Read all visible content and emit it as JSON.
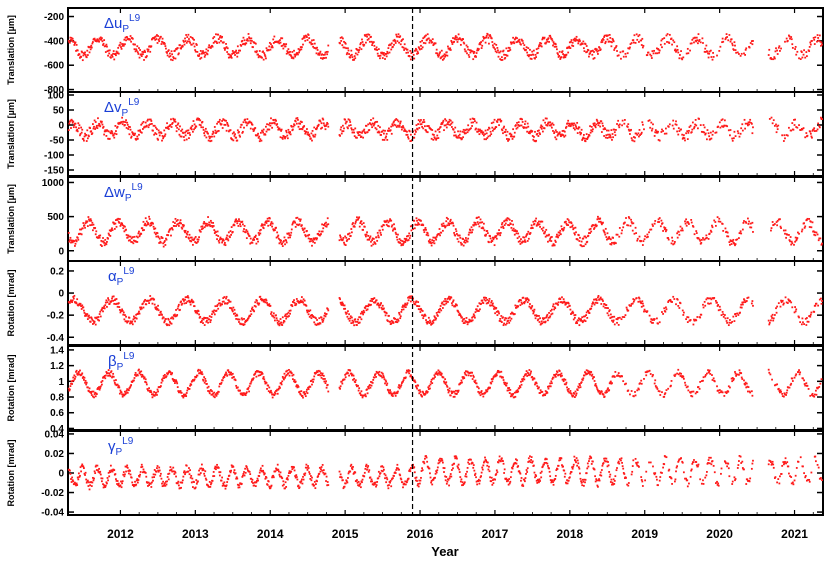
{
  "chart_data": {
    "type": "scatter",
    "xlabel": "Year",
    "x_tick_labels": [
      "2012",
      "2013",
      "2014",
      "2015",
      "2016",
      "2017",
      "2018",
      "2019",
      "2020",
      "2021"
    ],
    "xlim": [
      2011.3,
      2021.38
    ],
    "marker_line": 2015.9,
    "series_color": "#ff1a1a",
    "label_color": "#1a3fd6",
    "gaps": [
      [
        2014.78,
        2014.92
      ],
      [
        2020.45,
        2020.65
      ]
    ],
    "panels": [
      {
        "id": "du",
        "ylabel": "Translation [µm]",
        "symbol": "Δu",
        "sub": "P",
        "sup": "L9",
        "ylim": [
          -820,
          -130
        ],
        "ticks": [
          "-200",
          "-400",
          "-600",
          "-800"
        ],
        "tick_values": [
          -200,
          -400,
          -600,
          -800
        ],
        "base": -450,
        "amp": 70,
        "noise": 40,
        "freq": 2.5
      },
      {
        "id": "dv",
        "ylabel": "Translation [µm]",
        "symbol": "Δv",
        "sub": "P",
        "sup": "L9",
        "ylim": [
          -170,
          110
        ],
        "ticks": [
          "100",
          "50",
          "0",
          "-50",
          "-100",
          "-150"
        ],
        "tick_values": [
          100,
          50,
          0,
          -50,
          -100,
          -150
        ],
        "base": -15,
        "amp": 22,
        "noise": 18,
        "freq": 3
      },
      {
        "id": "dw",
        "ylabel": "Translation [µm]",
        "symbol": "Δw",
        "sub": "P",
        "sup": "L9",
        "ylim": [
          -150,
          1080
        ],
        "ticks": [
          "1000",
          "500",
          "0"
        ],
        "tick_values": [
          1000,
          500,
          0
        ],
        "base": 280,
        "amp": 150,
        "noise": 70,
        "freq": 2.5
      },
      {
        "id": "alpha",
        "ylabel": "Rotation [mrad]",
        "symbol": "α",
        "sub": "P",
        "sup": "L9",
        "ylim": [
          -0.47,
          0.29
        ],
        "ticks": [
          "0.2",
          "0",
          "-0.2",
          "-0.4"
        ],
        "tick_values": [
          0.2,
          0,
          -0.2,
          -0.4
        ],
        "base": -0.16,
        "amp": 0.1,
        "noise": 0.035,
        "freq": 2
      },
      {
        "id": "beta",
        "ylabel": "Rotation [mrad]",
        "symbol": "β",
        "sub": "P",
        "sup": "L9",
        "ylim": [
          0.38,
          1.45
        ],
        "ticks": [
          "1.4",
          "1.2",
          "1",
          "0.8",
          "0.6",
          "0.4"
        ],
        "tick_values": [
          1.4,
          1.2,
          1,
          0.8,
          0.6,
          0.4
        ],
        "base": 0.97,
        "amp": 0.14,
        "noise": 0.04,
        "freq": 2.5
      },
      {
        "id": "gamma",
        "ylabel": "Rotation [mrad]",
        "symbol": "γ",
        "sub": "P",
        "sup": "L9",
        "ylim": [
          -0.043,
          0.043
        ],
        "ticks": [
          "0.04",
          "0.02",
          "0",
          "-0.02",
          "-0.04"
        ],
        "tick_values": [
          0.04,
          0.02,
          0,
          -0.02,
          -0.04
        ],
        "base": -0.004,
        "amp": 0.009,
        "noise": 0.004,
        "freq": 5
      }
    ]
  }
}
